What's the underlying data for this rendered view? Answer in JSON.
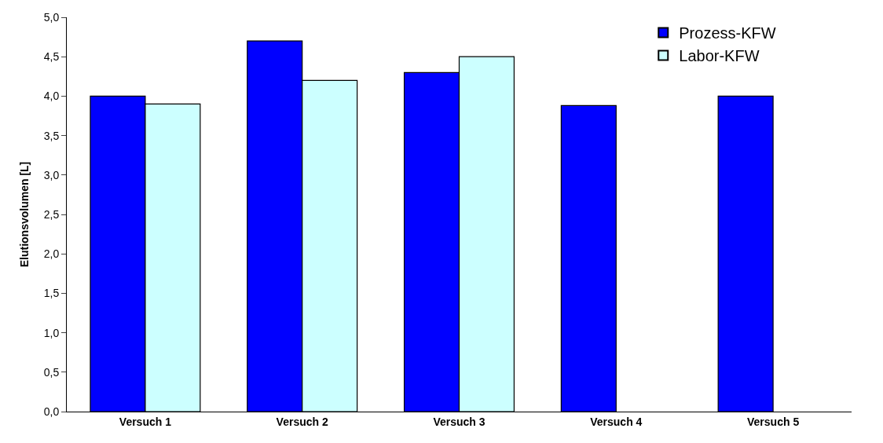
{
  "chart_data": {
    "type": "bar",
    "ylabel": "Elutionsvolumen [L]",
    "categories": [
      "Versuch 1",
      "Versuch 2",
      "Versuch 3",
      "Versuch 4",
      "Versuch 5"
    ],
    "series": [
      {
        "name": "Prozess-KFW",
        "color": "#0000ff",
        "values": [
          4.0,
          4.7,
          4.3,
          3.88,
          4.0
        ]
      },
      {
        "name": "Labor-KFW",
        "color": "#ccffff",
        "values": [
          3.9,
          4.2,
          4.5,
          null,
          null
        ]
      }
    ],
    "ylim": [
      0,
      5
    ],
    "yticks": [
      {
        "value": 0,
        "label": "0,0"
      },
      {
        "value": 0.5,
        "label": "0,5"
      },
      {
        "value": 1,
        "label": "1,0"
      },
      {
        "value": 1.5,
        "label": "1,5"
      },
      {
        "value": 2,
        "label": "2,0"
      },
      {
        "value": 2.5,
        "label": "2,5"
      },
      {
        "value": 3,
        "label": "3,0"
      },
      {
        "value": 3.5,
        "label": "3,5"
      },
      {
        "value": 4,
        "label": "4,0"
      },
      {
        "value": 4.5,
        "label": "4,5"
      },
      {
        "value": 5,
        "label": "5,0"
      }
    ],
    "grid": false,
    "legend": "top right"
  }
}
